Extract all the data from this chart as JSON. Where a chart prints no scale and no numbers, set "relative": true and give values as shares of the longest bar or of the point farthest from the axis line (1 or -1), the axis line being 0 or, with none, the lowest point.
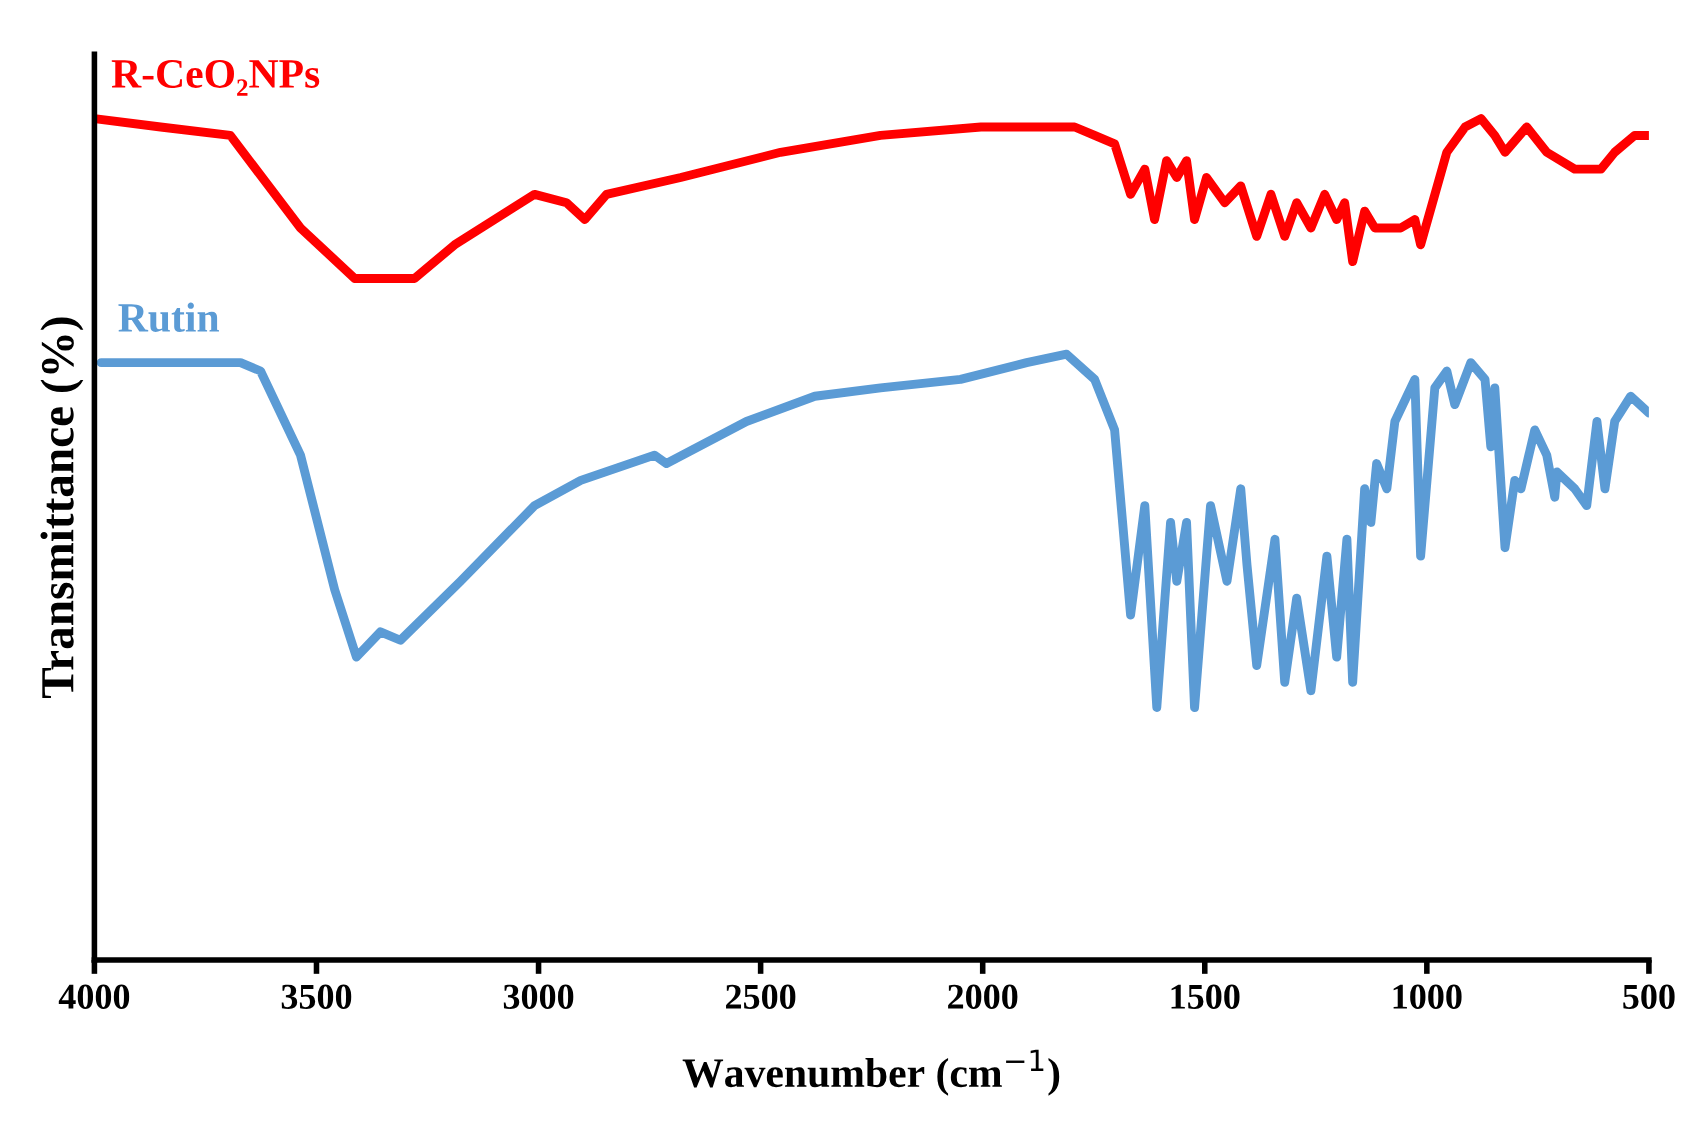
{
  "chart_data": {
    "type": "line",
    "xlabel": "Wavenumber (cm$^{−1}$)",
    "ylabel": "Transmittance (%)",
    "relative": true,
    "xlim": [
      4000,
      500
    ],
    "xticks": [
      4000,
      3500,
      3000,
      2500,
      2000,
      1500,
      1000,
      500
    ],
    "grid": false,
    "legend": false,
    "marker": "none",
    "line_style": "solid",
    "series": [
      {
        "name": "R-CeO₂NPs",
        "color": "#ff0000",
        "x": [
          4000,
          3851,
          3694,
          3536,
          3414,
          3279,
          3189,
          3009,
          2937,
          2896,
          2847,
          2680,
          2455,
          2230,
          2004,
          1793,
          1748,
          1703,
          1667,
          1635,
          1613,
          1586,
          1563,
          1541,
          1523,
          1496,
          1455,
          1419,
          1383,
          1351,
          1320,
          1293,
          1261,
          1230,
          1203,
          1185,
          1167,
          1140,
          1117,
          1059,
          1027,
          1014,
          955,
          914,
          878,
          847,
          824,
          775,
          730,
          667,
          608,
          577,
          532,
          500
        ],
        "values": [
          1.0,
          0.99,
          0.98,
          0.87,
          0.81,
          0.81,
          0.85,
          0.91,
          0.9,
          0.88,
          0.91,
          0.93,
          0.96,
          0.98,
          0.99,
          0.99,
          0.98,
          0.97,
          0.91,
          0.94,
          0.88,
          0.95,
          0.93,
          0.95,
          0.88,
          0.93,
          0.9,
          0.92,
          0.86,
          0.91,
          0.86,
          0.9,
          0.87,
          0.91,
          0.88,
          0.9,
          0.83,
          0.89,
          0.87,
          0.87,
          0.88,
          0.85,
          0.96,
          0.99,
          1.0,
          0.98,
          0.96,
          0.99,
          0.96,
          0.94,
          0.94,
          0.96,
          0.98,
          0.98
        ]
      },
      {
        "name": "Rutin",
        "color": "#5b9bd5",
        "x": [
          3985,
          3671,
          3626,
          3536,
          3459,
          3410,
          3356,
          3311,
          3176,
          3009,
          2905,
          2739,
          2712,
          2532,
          2378,
          2230,
          2050,
          1901,
          1811,
          1748,
          1703,
          1667,
          1635,
          1608,
          1577,
          1563,
          1541,
          1523,
          1487,
          1450,
          1419,
          1405,
          1383,
          1342,
          1320,
          1293,
          1261,
          1225,
          1203,
          1180,
          1167,
          1140,
          1126,
          1113,
          1090,
          1072,
          1027,
          1014,
          982,
          955,
          937,
          901,
          869,
          856,
          847,
          824,
          802,
          788,
          757,
          730,
          712,
          707,
          667,
          640,
          617,
          599,
          577,
          541,
          500
        ],
        "values": [
          0.71,
          0.71,
          0.7,
          0.6,
          0.44,
          0.36,
          0.39,
          0.38,
          0.45,
          0.54,
          0.57,
          0.6,
          0.59,
          0.64,
          0.67,
          0.68,
          0.69,
          0.71,
          0.72,
          0.69,
          0.63,
          0.41,
          0.54,
          0.3,
          0.52,
          0.45,
          0.52,
          0.3,
          0.54,
          0.45,
          0.56,
          0.47,
          0.35,
          0.5,
          0.33,
          0.43,
          0.32,
          0.48,
          0.36,
          0.5,
          0.33,
          0.56,
          0.52,
          0.59,
          0.56,
          0.64,
          0.69,
          0.48,
          0.68,
          0.7,
          0.66,
          0.71,
          0.69,
          0.61,
          0.68,
          0.49,
          0.57,
          0.56,
          0.63,
          0.6,
          0.55,
          0.58,
          0.56,
          0.54,
          0.64,
          0.56,
          0.64,
          0.67,
          0.65
        ]
      }
    ]
  }
}
